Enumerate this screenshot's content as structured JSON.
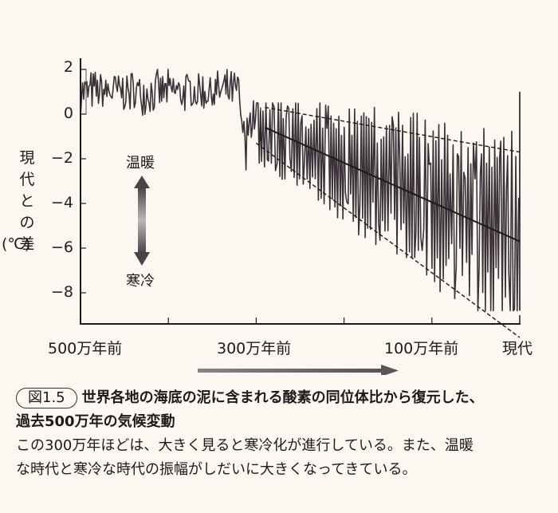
{
  "chart_data": {
    "type": "line",
    "title": "過去500万年の気候変動",
    "xlabel": "",
    "ylabel": "現代との差（℃）",
    "ylim": [
      -9.5,
      2.5
    ],
    "xlim": [
      -5.0,
      0.0
    ],
    "x_unit": "百万年",
    "y_ticks": [
      2,
      0,
      -2,
      -4,
      -6,
      -8
    ],
    "y_tick_labels": [
      "2",
      "0",
      "−2",
      "−4",
      "−6",
      "−8"
    ],
    "x_tick_labels": [
      {
        "x": -5.0,
        "label": "500万年前"
      },
      {
        "x": -3.0,
        "label": "300万年前"
      },
      {
        "x": -1.0,
        "label": "100万年前"
      },
      {
        "x": 0.0,
        "label": "現代"
      }
    ],
    "x_minor_ticks": [
      -4.0,
      -3.0,
      -2.0,
      -1.0
    ],
    "grid": false,
    "series": [
      {
        "name": "temperature_anomaly",
        "description": "Noisy temperature anomaly; ~+1 (range +2..0) from 5.0 to 3.0 Ma with a dip to about -2.5 near 3.1 Ma; after 3.0 Ma oscillation amplitude grows while mean declines.",
        "segments": [
          {
            "x_from": -5.0,
            "x_to": -3.2,
            "mean": 1.0,
            "amplitude": 1.0
          },
          {
            "x_from": -3.2,
            "x_to": -3.0,
            "mean": 0.0,
            "amplitude": 1.5,
            "min": -2.5
          },
          {
            "x_from": -3.0,
            "x_to": 0.0,
            "mean_start": -0.5,
            "mean_end": -5.6,
            "amplitude_start": 1.5,
            "amplitude_end": 4.5,
            "max": 0.5,
            "min": -8.8
          }
        ]
      },
      {
        "name": "trend_line",
        "style": "solid",
        "points": [
          [
            -2.9,
            -0.6
          ],
          [
            0.0,
            -5.7
          ]
        ]
      },
      {
        "name": "upper_envelope",
        "style": "dashed",
        "points": [
          [
            -2.9,
            0.3
          ],
          [
            0.0,
            -1.7
          ]
        ]
      },
      {
        "name": "lower_envelope",
        "style": "dashed",
        "points": [
          [
            -3.0,
            -1.3
          ],
          [
            0.0,
            -10.0
          ]
        ]
      }
    ],
    "annotations": [
      {
        "text": "温暖",
        "position": "above double arrow"
      },
      {
        "text": "寒冷",
        "position": "below double arrow"
      },
      {
        "text": "→",
        "description": "time direction arrow beneath x-axis, 300万年前 to 100万年前"
      }
    ]
  },
  "axis": {
    "y_label": [
      "現",
      "代",
      "と",
      "の",
      "差"
    ],
    "y_unit": "(℃)",
    "y_ticks": [
      "2",
      "0",
      "−2",
      "−4",
      "−6",
      "−8"
    ],
    "x_labels": [
      "500万年前",
      "300万年前",
      "100万年前",
      "現代"
    ]
  },
  "legend": {
    "warm": "温暖",
    "cold": "寒冷"
  },
  "caption": {
    "figure_number": "図1.5",
    "title_line1": "世界各地の海底の泥に含まれる酸素の同位体比から復元した、",
    "title_line2": "過去500万年の気候変動"
  },
  "body": {
    "line1": "この300万年ほどは、大きく見ると寒冷化が進行している。また、温暖",
    "line2": "な時代と寒冷な時代の振幅がしだいに大きくなってきている。"
  },
  "colors": {
    "background": "#fbf8f2",
    "line": "#3a3238",
    "axis": "#1d1a1c"
  }
}
